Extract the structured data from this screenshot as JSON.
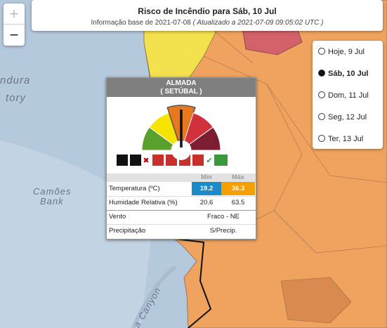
{
  "header": {
    "title": "Risco de Incêndio para Sáb, 10 Jul",
    "base": "Informação base de 2021-07-08",
    "updated": "( Atualizado a 2021-07-09 09:05:02 UTC )"
  },
  "zoom": {
    "in": "+",
    "out": "−"
  },
  "dates": {
    "options": [
      "Hoje, 9 Jul",
      "Sáb, 10 Jul",
      "Dom, 11 Jul",
      "Seg, 12 Jul",
      "Ter, 13 Jul"
    ],
    "selected": 1
  },
  "map_labels": [
    "ndura",
    "tory",
    "Camões",
    "Bank",
    "a Canyon"
  ],
  "popup": {
    "municipality": "ALMADA",
    "district": "( SETÚBAL )",
    "gauge": {
      "level": 3,
      "colors": [
        "#5aa02c",
        "#f5e400",
        "#e8781e",
        "#d1313b",
        "#7d1d32"
      ]
    },
    "table": {
      "header": [
        "Min",
        "Máx"
      ],
      "rows": [
        [
          "Temperatura (ºC)",
          "19.2",
          "36.3"
        ],
        [
          "Humidade Relativa (%)",
          "20.6",
          "63.5"
        ],
        [
          "Vento",
          "Fraco - NE"
        ],
        [
          "Precipitação",
          "S/Precip."
        ]
      ]
    }
  }
}
